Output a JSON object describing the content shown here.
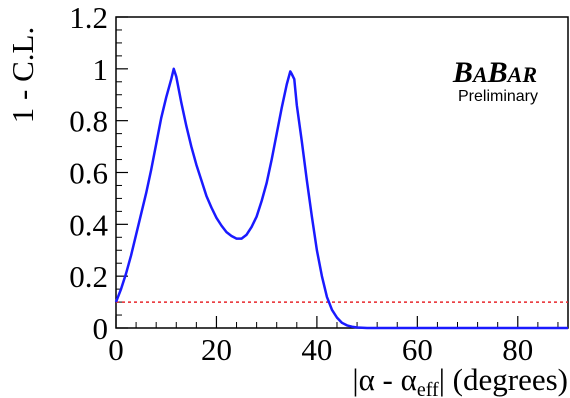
{
  "chart_data": {
    "type": "line",
    "xlabel": {
      "pre": "|α - α",
      "sub": "eff",
      "post": "| (degrees)"
    },
    "ylabel": "1 - C.L.",
    "xlim": [
      0,
      90
    ],
    "ylim": [
      0,
      1.2
    ],
    "x_ticks": [
      0,
      20,
      40,
      60,
      80
    ],
    "x_tick_labels": [
      "0",
      "20",
      "40",
      "60",
      "80"
    ],
    "y_ticks": [
      0,
      0.2,
      0.4,
      0.6,
      0.8,
      1.0,
      1.2
    ],
    "y_tick_labels": [
      "0",
      "0.2",
      "0.4",
      "0.6",
      "0.8",
      "1",
      "1.2"
    ],
    "series": [
      {
        "color": "#1a1aff",
        "x": [
          0,
          1,
          2,
          3,
          4,
          5,
          6,
          7,
          8,
          9,
          10,
          11,
          11.5,
          12,
          13,
          14,
          15,
          16,
          17,
          18,
          19,
          20,
          21,
          22,
          23,
          24,
          25,
          26,
          27,
          28,
          29,
          30,
          31,
          32,
          33,
          34,
          34.7,
          35,
          35.5,
          36,
          37,
          38,
          39,
          40,
          41,
          42,
          43,
          44,
          45,
          46,
          47,
          48,
          50,
          55,
          60,
          70,
          80,
          90
        ],
        "y": [
          0.1,
          0.15,
          0.21,
          0.28,
          0.36,
          0.44,
          0.52,
          0.61,
          0.71,
          0.81,
          0.89,
          0.96,
          1.0,
          0.97,
          0.87,
          0.78,
          0.7,
          0.63,
          0.57,
          0.51,
          0.465,
          0.425,
          0.395,
          0.37,
          0.355,
          0.345,
          0.345,
          0.36,
          0.39,
          0.43,
          0.49,
          0.56,
          0.65,
          0.75,
          0.85,
          0.94,
          0.99,
          0.98,
          0.96,
          0.86,
          0.72,
          0.57,
          0.43,
          0.3,
          0.2,
          0.12,
          0.07,
          0.04,
          0.02,
          0.01,
          0.005,
          0.002,
          0.0,
          0.0,
          0.0,
          0.0,
          0.0,
          0.0
        ]
      }
    ],
    "threshold": {
      "y": 0.1,
      "color": "#e8262b"
    }
  },
  "branding": {
    "logo": {
      "part1": "B",
      "part2": "A",
      "part3": "B",
      "part4": "AR"
    },
    "note": "Preliminary"
  }
}
